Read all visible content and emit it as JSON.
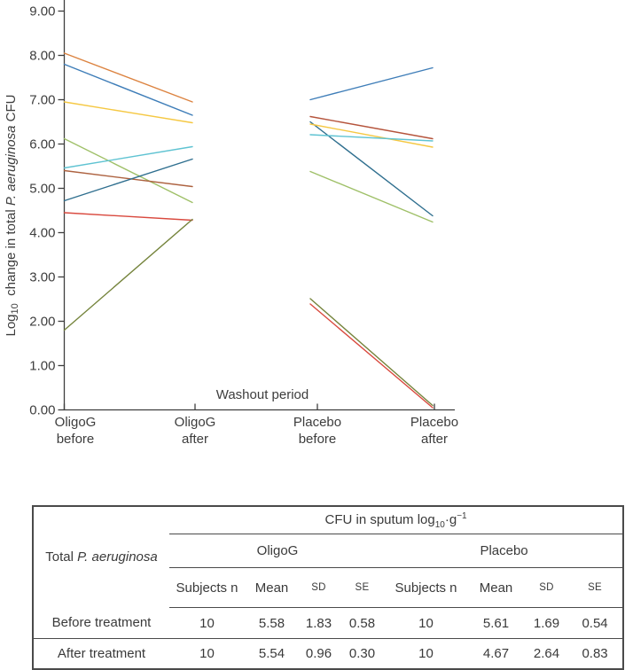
{
  "chart_data": {
    "type": "line",
    "title": "",
    "ylabel": "Log10 change in total P. aeruginosa CFU",
    "ylabel_parts": {
      "prefix": "Log",
      "sub": "10",
      "mid": " change in total ",
      "italic": "P. aeruginosa",
      "suffix": " CFU"
    },
    "ylim": [
      0,
      9
    ],
    "grid": false,
    "legend": false,
    "y_tick_labels": [
      "0.00",
      "1.00",
      "2.00",
      "3.00",
      "4.00",
      "5.00",
      "6.00",
      "7.00",
      "8.00",
      "9.00"
    ],
    "categories": [
      {
        "line1": "OligoG",
        "line2": "before"
      },
      {
        "line1": "OligoG",
        "line2": "after"
      },
      {
        "line1": "Placebo",
        "line2": "before"
      },
      {
        "line1": "Placebo",
        "line2": "after"
      }
    ],
    "annotation": "Washout period",
    "palette": {
      "orange": "#DC8340",
      "blue": "#3E7DB8",
      "yellow": "#F5C843",
      "light_green": "#9FC068",
      "cyan": "#5FC3D2",
      "brown": "#AD6240",
      "dark_teal": "#2F6F8F",
      "red": "#D9493E",
      "olive": "#75843C",
      "dark_red": "#B5543C"
    },
    "segments": [
      {
        "panel": "oligoG",
        "color": "orange",
        "from": 8.05,
        "to": 6.95
      },
      {
        "panel": "oligoG",
        "color": "blue",
        "from": 7.8,
        "to": 6.65
      },
      {
        "panel": "oligoG",
        "color": "yellow",
        "from": 6.95,
        "to": 6.48
      },
      {
        "panel": "oligoG",
        "color": "light_green",
        "from": 6.12,
        "to": 4.68
      },
      {
        "panel": "oligoG",
        "color": "cyan",
        "from": 5.46,
        "to": 5.94
      },
      {
        "panel": "oligoG",
        "color": "brown",
        "from": 5.4,
        "to": 5.04
      },
      {
        "panel": "oligoG",
        "color": "dark_teal",
        "from": 4.72,
        "to": 5.66
      },
      {
        "panel": "oligoG",
        "color": "red",
        "from": 4.45,
        "to": 4.28
      },
      {
        "panel": "oligoG",
        "color": "olive",
        "from": 1.8,
        "to": 4.3
      },
      {
        "panel": "placebo",
        "color": "blue",
        "from": 7.0,
        "to": 7.72
      },
      {
        "panel": "placebo",
        "color": "dark_red",
        "from": 6.62,
        "to": 6.12
      },
      {
        "panel": "placebo",
        "color": "dark_teal",
        "from": 6.5,
        "to": 4.38
      },
      {
        "panel": "placebo",
        "color": "yellow",
        "from": 6.45,
        "to": 5.93
      },
      {
        "panel": "placebo",
        "color": "cyan",
        "from": 6.21,
        "to": 6.07
      },
      {
        "panel": "placebo",
        "color": "light_green",
        "from": 5.38,
        "to": 4.24
      },
      {
        "panel": "placebo",
        "color": "olive",
        "from": 2.51,
        "to": 0.1
      },
      {
        "panel": "placebo",
        "color": "red",
        "from": 2.39,
        "to": 0.05
      }
    ]
  },
  "table": {
    "row_header_prefix": "Total ",
    "row_header_italic": "P. aeruginosa",
    "span_header": {
      "prefix": "CFU in sputum log",
      "sub": "10",
      "mid": "·g",
      "sup": "−1"
    },
    "groups": {
      "left": "OligoG",
      "right": "Placebo"
    },
    "col_headers": [
      "Subjects n",
      "Mean",
      "SD",
      "SE",
      "Subjects n",
      "Mean",
      "SD",
      "SE"
    ],
    "rows": [
      {
        "label": "Before treatment",
        "values": [
          "10",
          "5.58",
          "1.83",
          "0.58",
          "10",
          "5.61",
          "1.69",
          "0.54"
        ]
      },
      {
        "label": "After treatment",
        "values": [
          "10",
          "5.54",
          "0.96",
          "0.30",
          "10",
          "4.67",
          "2.64",
          "0.83"
        ]
      }
    ]
  }
}
